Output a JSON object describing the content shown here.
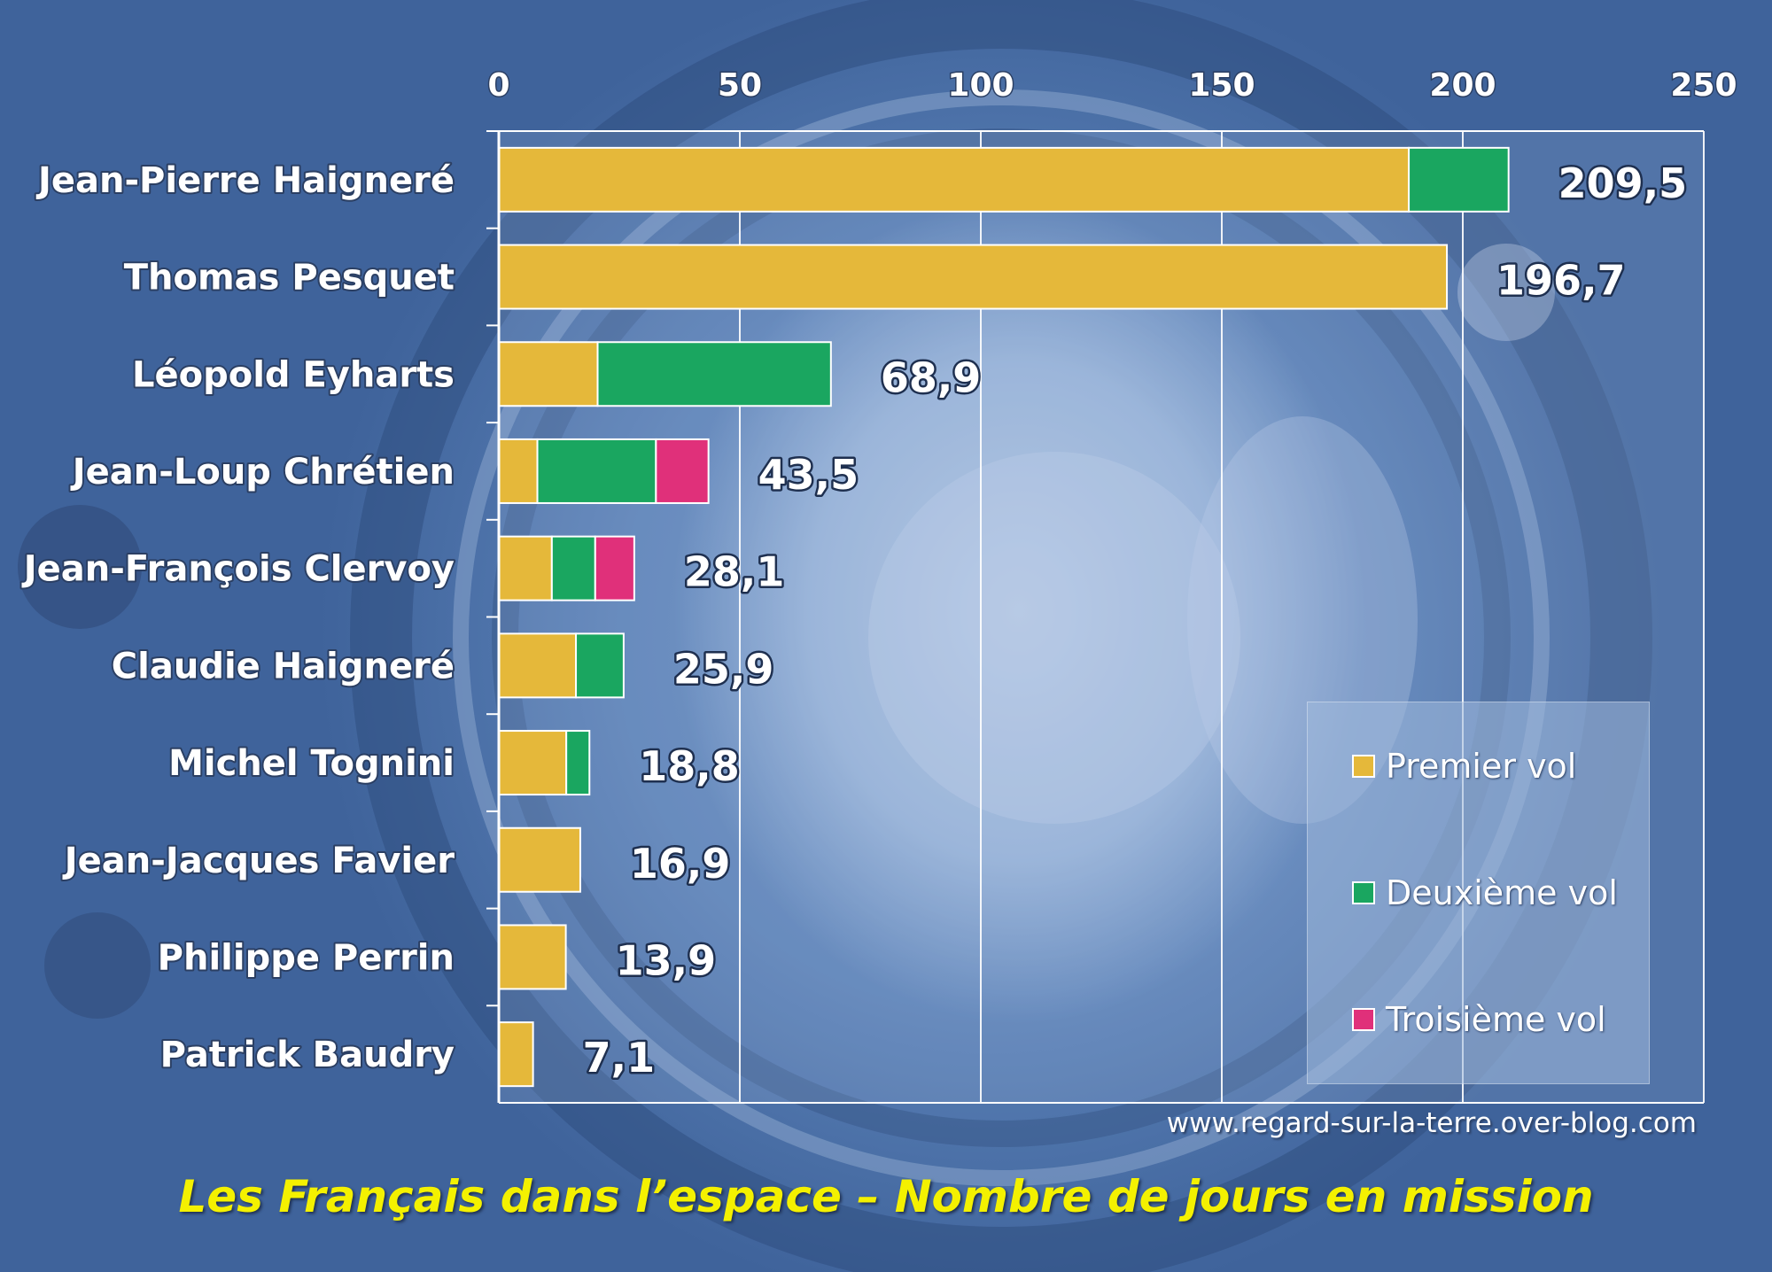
{
  "chart_data": {
    "type": "bar",
    "orientation": "horizontal",
    "stacked": true,
    "title": "Les Français dans l’espace – Nombre de jours en mission",
    "xlim": [
      0,
      250
    ],
    "x_ticks": [
      "0",
      "50",
      "100",
      "150",
      "200",
      "250"
    ],
    "x_tick_values": [
      0,
      50,
      100,
      150,
      200,
      250
    ],
    "categories": [
      "Jean-Pierre Haigneré",
      "Thomas Pesquet",
      "Léopold Eyharts",
      "Jean-Loup Chrétien",
      "Jean-François Clervoy",
      "Claudie Haigneré",
      "Michel Tognini",
      "Jean-Jacques Favier",
      "Philippe Perrin",
      "Patrick Baudry"
    ],
    "series": [
      {
        "name": "Premier vol",
        "color": "#e5b83a",
        "values": [
          188.8,
          196.7,
          20.5,
          8,
          11,
          16,
          14,
          16.9,
          13.9,
          7.1
        ]
      },
      {
        "name": "Deuxième vol",
        "color": "#1aa660",
        "values": [
          20.7,
          0,
          48.4,
          24.6,
          9,
          9.9,
          4.8,
          0,
          0,
          0
        ]
      },
      {
        "name": "Troisième vol",
        "color": "#e0307a",
        "values": [
          0,
          0,
          0,
          10.9,
          8.1,
          0,
          0,
          0,
          0,
          0
        ]
      }
    ],
    "total_labels": [
      "209,5",
      "196,7",
      "68,9",
      "43,5",
      "28,1",
      "25,9",
      "18,8",
      "16,9",
      "13,9",
      "7,1"
    ],
    "legend_position": "bottom-right"
  },
  "legend": {
    "items": [
      {
        "label": "Premier vol",
        "color": "#e5b83a"
      },
      {
        "label": "Deuxième vol",
        "color": "#1aa660"
      },
      {
        "label": "Troisième vol",
        "color": "#e0307a"
      }
    ]
  },
  "watermark": "www.regard-sur-la-terre.over-blog.com"
}
